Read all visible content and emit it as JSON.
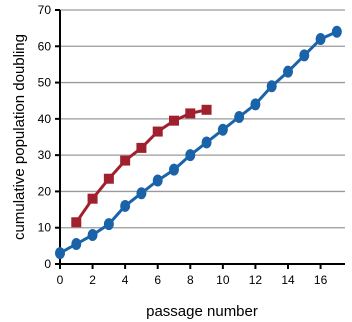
{
  "chart_data": {
    "type": "line",
    "xlabel": "passage number",
    "ylabel": "cumulative population doubling",
    "xlim": [
      0,
      17.5
    ],
    "ylim": [
      0,
      70
    ],
    "x_ticks": [
      0,
      2,
      4,
      6,
      8,
      10,
      12,
      14,
      16
    ],
    "y_ticks": [
      0,
      10,
      20,
      30,
      40,
      50,
      60,
      70
    ],
    "grid": "horizontal",
    "legend": "none",
    "series": [
      {
        "color": "#a0202e",
        "marker": "square",
        "points": [
          {
            "x": 1,
            "y": 11.5
          },
          {
            "x": 2,
            "y": 18.0
          },
          {
            "x": 3,
            "y": 23.5
          },
          {
            "x": 4,
            "y": 28.5
          },
          {
            "x": 5,
            "y": 32.0
          },
          {
            "x": 6,
            "y": 36.5
          },
          {
            "x": 7,
            "y": 39.5
          },
          {
            "x": 8,
            "y": 41.5
          },
          {
            "x": 9,
            "y": 42.5
          }
        ]
      },
      {
        "color": "#1a63a8",
        "marker": "circle",
        "points": [
          {
            "x": 0,
            "y": 3.0
          },
          {
            "x": 1,
            "y": 5.5
          },
          {
            "x": 2,
            "y": 8.0
          },
          {
            "x": 3,
            "y": 11.0
          },
          {
            "x": 4,
            "y": 16.0
          },
          {
            "x": 5,
            "y": 19.5
          },
          {
            "x": 6,
            "y": 23.0
          },
          {
            "x": 7,
            "y": 26.0
          },
          {
            "x": 8,
            "y": 30.0
          },
          {
            "x": 9,
            "y": 33.5
          },
          {
            "x": 10,
            "y": 37.0
          },
          {
            "x": 11,
            "y": 40.5
          },
          {
            "x": 12,
            "y": 44.0
          },
          {
            "x": 13,
            "y": 49.0
          },
          {
            "x": 14,
            "y": 53.0
          },
          {
            "x": 15,
            "y": 57.5
          },
          {
            "x": 16,
            "y": 62.0
          },
          {
            "x": 17,
            "y": 64.0
          }
        ]
      }
    ]
  }
}
